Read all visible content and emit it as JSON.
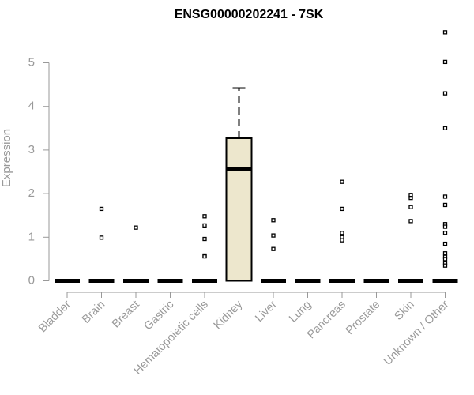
{
  "chart_data": {
    "type": "box",
    "title": "ENSG00000202241 - 7SK",
    "xlabel": "",
    "ylabel": "Expression",
    "ylim": [
      0,
      5.8
    ],
    "yticks": [
      0,
      1,
      2,
      3,
      4,
      5
    ],
    "grid": false,
    "legend": "none",
    "box_fill": "#ede7cd",
    "categories": [
      "Bladder",
      "Brain",
      "Breast",
      "Gastric",
      "Hematopoietic cells",
      "Kidney",
      "Liver",
      "Lung",
      "Pancreas",
      "Prostate",
      "Skin",
      "Unknown / Other"
    ],
    "boxes": [
      {
        "category": "Bladder",
        "q1": 0,
        "median": 0,
        "q3": 0,
        "whisker_low": 0,
        "whisker_high": 0,
        "outliers": []
      },
      {
        "category": "Brain",
        "q1": 0,
        "median": 0,
        "q3": 0,
        "whisker_low": 0,
        "whisker_high": 0,
        "outliers": [
          1.65,
          0.99
        ]
      },
      {
        "category": "Breast",
        "q1": 0,
        "median": 0,
        "q3": 0,
        "whisker_low": 0,
        "whisker_high": 0,
        "outliers": [
          1.22
        ]
      },
      {
        "category": "Gastric",
        "q1": 0,
        "median": 0,
        "q3": 0,
        "whisker_low": 0,
        "whisker_high": 0,
        "outliers": []
      },
      {
        "category": "Hematopoietic cells",
        "q1": 0,
        "median": 0,
        "q3": 0,
        "whisker_low": 0,
        "whisker_high": 0,
        "outliers": [
          1.48,
          1.27,
          0.96,
          0.58,
          0.56
        ]
      },
      {
        "category": "Kidney",
        "q1": 0,
        "median": 2.56,
        "q3": 3.27,
        "whisker_low": 0,
        "whisker_high": 4.42,
        "outliers": []
      },
      {
        "category": "Liver",
        "q1": 0,
        "median": 0,
        "q3": 0,
        "whisker_low": 0,
        "whisker_high": 0,
        "outliers": [
          1.39,
          1.04,
          0.73
        ]
      },
      {
        "category": "Lung",
        "q1": 0,
        "median": 0,
        "q3": 0,
        "whisker_low": 0,
        "whisker_high": 0,
        "outliers": []
      },
      {
        "category": "Pancreas",
        "q1": 0,
        "median": 0,
        "q3": 0,
        "whisker_low": 0,
        "whisker_high": 0,
        "outliers": [
          2.27,
          1.65,
          1.1,
          1.0,
          0.93
        ]
      },
      {
        "category": "Prostate",
        "q1": 0,
        "median": 0,
        "q3": 0,
        "whisker_low": 0,
        "whisker_high": 0,
        "outliers": []
      },
      {
        "category": "Skin",
        "q1": 0,
        "median": 0,
        "q3": 0,
        "whisker_low": 0,
        "whisker_high": 0,
        "outliers": [
          1.97,
          1.9,
          1.69,
          1.37
        ]
      },
      {
        "category": "Unknown / Other",
        "q1": 0,
        "median": 0,
        "q3": 0,
        "whisker_low": 0,
        "whisker_high": 0,
        "outliers": [
          5.7,
          5.02,
          4.3,
          3.5,
          1.93,
          1.74,
          1.3,
          1.24,
          1.1,
          0.85,
          0.63,
          0.55,
          0.5,
          0.4,
          0.35
        ]
      }
    ]
  }
}
